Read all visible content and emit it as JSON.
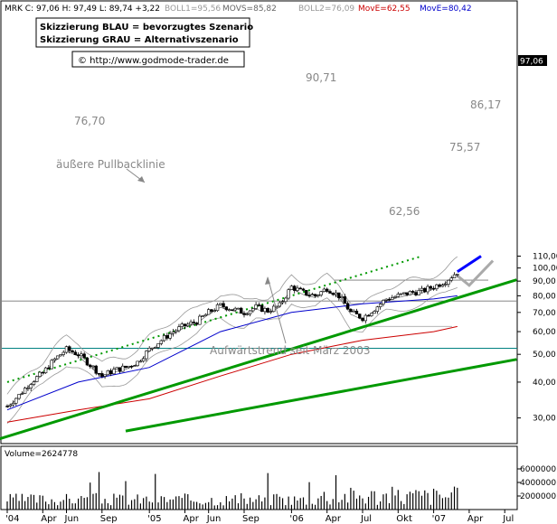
{
  "header": {
    "ohlc_text": "MRK C: 97,06 H: 97,49 L: 89,74 +3,22",
    "indicators": [
      {
        "text": "BOLL1=95,56",
        "color": "#999999"
      },
      {
        "text": "MOVS=85,82",
        "color": "#666666"
      },
      {
        "text": "BOLL2=76,09",
        "color": "#999999"
      },
      {
        "text": "MovE=62,55",
        "color": "#cc0000"
      },
      {
        "text": "MovE=80,42",
        "color": "#0000cc"
      }
    ]
  },
  "legend_box": {
    "line1": "Skizzierung BLAU = bevorzugtes Szenario",
    "line2": "Skizzierung GRAU = Alternativszenario"
  },
  "url_box": {
    "icon": "copyright-icon",
    "text": "© http://www.godmode-trader.de"
  },
  "annotations": {
    "level_9071": "90,71",
    "level_7670": "76,70",
    "level_8617": "86,17",
    "level_7557": "75,57",
    "level_6256": "62,56",
    "pullback_label": "äußere Pullbacklinie",
    "trend_label": "Aufwärtstrend seit März 2003"
  },
  "price_scale": {
    "ticks": [
      "110,00",
      "100,00",
      "90,00",
      "80,00",
      "70,00",
      "60,00",
      "50,00",
      "40,00",
      "30,00"
    ],
    "current_price": "97,06"
  },
  "volume": {
    "label": "Volume=2624778",
    "ticks": [
      "6000000",
      "4000000",
      "2000000"
    ]
  },
  "x_axis": {
    "labels": [
      "'04",
      "Apr",
      "Jun",
      "Sep",
      "'05",
      "Apr",
      "Jun",
      "Sep",
      "'06",
      "Apr",
      "Jul",
      "Okt",
      "'07",
      "Apr",
      "Jul"
    ]
  },
  "colors": {
    "background": "#ffffff",
    "candles": "#000000",
    "ma_blue": "#0000cc",
    "ma_red": "#cc0000",
    "bollinger": "#999999",
    "trend_green": "#009900",
    "scenario_blue": "#0000ff",
    "scenario_gray": "#aaaaaa",
    "horizontal_teal": "#008080"
  },
  "chart_data": {
    "type": "candlestick",
    "title": "MRK",
    "y_scale": "log",
    "ylim": [
      28,
      115
    ],
    "xlim": [
      "2004-01",
      "2007-07"
    ],
    "closes_monthly_approx": [
      {
        "x": "2004-01",
        "y": 33
      },
      {
        "x": "2004-02",
        "y": 36
      },
      {
        "x": "2004-03",
        "y": 40
      },
      {
        "x": "2004-04",
        "y": 43
      },
      {
        "x": "2004-05",
        "y": 48
      },
      {
        "x": "2004-06",
        "y": 52
      },
      {
        "x": "2004-07",
        "y": 50
      },
      {
        "x": "2004-08",
        "y": 46
      },
      {
        "x": "2004-09",
        "y": 42
      },
      {
        "x": "2004-10",
        "y": 44
      },
      {
        "x": "2004-11",
        "y": 45
      },
      {
        "x": "2004-12",
        "y": 47
      },
      {
        "x": "2005-01",
        "y": 52
      },
      {
        "x": "2005-02",
        "y": 56
      },
      {
        "x": "2005-03",
        "y": 60
      },
      {
        "x": "2005-04",
        "y": 63
      },
      {
        "x": "2005-05",
        "y": 65
      },
      {
        "x": "2005-06",
        "y": 70
      },
      {
        "x": "2005-07",
        "y": 74
      },
      {
        "x": "2005-08",
        "y": 72
      },
      {
        "x": "2005-09",
        "y": 70
      },
      {
        "x": "2005-10",
        "y": 73
      },
      {
        "x": "2005-11",
        "y": 71
      },
      {
        "x": "2005-12",
        "y": 74
      },
      {
        "x": "2006-01",
        "y": 86
      },
      {
        "x": "2006-02",
        "y": 82
      },
      {
        "x": "2006-03",
        "y": 80
      },
      {
        "x": "2006-04",
        "y": 85
      },
      {
        "x": "2006-05",
        "y": 80
      },
      {
        "x": "2006-06",
        "y": 70
      },
      {
        "x": "2006-07",
        "y": 67
      },
      {
        "x": "2006-08",
        "y": 72
      },
      {
        "x": "2006-09",
        "y": 78
      },
      {
        "x": "2006-10",
        "y": 80
      },
      {
        "x": "2006-11",
        "y": 82
      },
      {
        "x": "2006-12",
        "y": 83
      },
      {
        "x": "2007-01",
        "y": 86
      },
      {
        "x": "2007-02",
        "y": 90
      },
      {
        "x": "2007-03",
        "y": 97
      }
    ],
    "moving_average_blue": [
      {
        "x": "2004-01",
        "y": 32
      },
      {
        "x": "2004-07",
        "y": 40
      },
      {
        "x": "2005-01",
        "y": 45
      },
      {
        "x": "2005-07",
        "y": 60
      },
      {
        "x": "2006-01",
        "y": 70
      },
      {
        "x": "2006-07",
        "y": 75
      },
      {
        "x": "2007-01",
        "y": 78
      },
      {
        "x": "2007-03",
        "y": 80
      }
    ],
    "moving_average_red": [
      {
        "x": "2004-01",
        "y": 29
      },
      {
        "x": "2004-07",
        "y": 32
      },
      {
        "x": "2005-01",
        "y": 35
      },
      {
        "x": "2005-07",
        "y": 42
      },
      {
        "x": "2006-01",
        "y": 50
      },
      {
        "x": "2006-07",
        "y": 56
      },
      {
        "x": "2007-01",
        "y": 60
      },
      {
        "x": "2007-03",
        "y": 62.5
      }
    ],
    "horizontal_levels": [
      90.71,
      76.7,
      62.56,
      52.5
    ],
    "trend_lines": [
      {
        "from": {
          "x": "2003-09",
          "y": 23
        },
        "to": {
          "x": "2007-08",
          "y": 91
        }
      },
      {
        "from": {
          "x": "2004-11",
          "y": 27
        },
        "to": {
          "x": "2007-08",
          "y": 48
        }
      }
    ],
    "pullback_line": {
      "from": {
        "x": "2004-01",
        "y": 40
      },
      "to": {
        "x": "2006-12",
        "y": 110
      }
    },
    "scenario_blue": [
      {
        "x": "2007-03",
        "y": 97
      },
      {
        "x": "2007-05",
        "y": 110
      }
    ],
    "scenario_gray": [
      {
        "x": "2007-03",
        "y": 94
      },
      {
        "x": "2007-04",
        "y": 87
      },
      {
        "x": "2007-06",
        "y": 106
      }
    ],
    "volume_scale_max": 6000000
  }
}
